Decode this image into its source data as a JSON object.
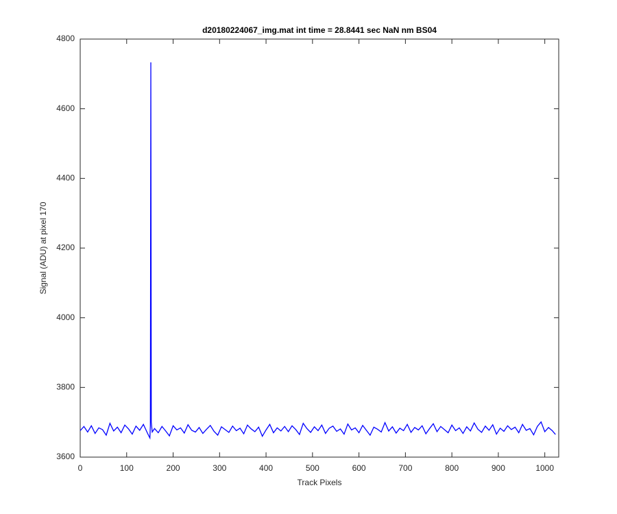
{
  "chart_data": {
    "type": "line",
    "title": "d20180224067_img.mat int time = 28.8441 sec  NaN nm BS04",
    "x_label": "Track Pixels",
    "y_label": "Signal (ADU) at pixel 170",
    "xlim": [
      0,
      1030
    ],
    "ylim": [
      3600,
      4800
    ],
    "xticks": [
      0,
      100,
      200,
      300,
      400,
      500,
      600,
      700,
      800,
      900,
      1000
    ],
    "yticks": [
      3600,
      3800,
      4000,
      4200,
      4400,
      4600,
      4800
    ],
    "series": [
      {
        "color": "#0000ff",
        "x": [
          0,
          8,
          16,
          24,
          32,
          40,
          48,
          56,
          64,
          72,
          80,
          88,
          96,
          104,
          112,
          120,
          128,
          136,
          144,
          148,
          150,
          151,
          152,
          153,
          155,
          160,
          168,
          176,
          184,
          192,
          200,
          208,
          216,
          224,
          232,
          240,
          248,
          256,
          264,
          272,
          280,
          288,
          296,
          304,
          312,
          320,
          328,
          336,
          344,
          352,
          360,
          368,
          376,
          384,
          392,
          400,
          408,
          416,
          424,
          432,
          440,
          448,
          456,
          464,
          472,
          480,
          488,
          496,
          504,
          512,
          520,
          528,
          536,
          544,
          552,
          560,
          568,
          576,
          584,
          592,
          600,
          608,
          616,
          624,
          632,
          640,
          648,
          656,
          664,
          672,
          680,
          688,
          696,
          704,
          712,
          720,
          728,
          736,
          744,
          752,
          760,
          768,
          776,
          784,
          792,
          800,
          808,
          816,
          824,
          832,
          840,
          848,
          856,
          864,
          872,
          880,
          888,
          896,
          904,
          912,
          920,
          928,
          936,
          944,
          952,
          960,
          968,
          976,
          984,
          992,
          1000,
          1008,
          1016,
          1023
        ],
        "values": [
          3676,
          3688,
          3672,
          3690,
          3668,
          3684,
          3679,
          3663,
          3697,
          3675,
          3686,
          3670,
          3692,
          3681,
          3666,
          3689,
          3677,
          3694,
          3671,
          3660,
          3655,
          3690,
          4733,
          3700,
          3672,
          3682,
          3670,
          3688,
          3675,
          3661,
          3690,
          3678,
          3684,
          3669,
          3693,
          3677,
          3672,
          3685,
          3668,
          3680,
          3691,
          3674,
          3663,
          3687,
          3679,
          3671,
          3689,
          3676,
          3683,
          3667,
          3692,
          3681,
          3673,
          3686,
          3660,
          3678,
          3694,
          3670,
          3684,
          3675,
          3688,
          3673,
          3690,
          3679,
          3665,
          3697,
          3682,
          3671,
          3687,
          3676,
          3692,
          3668,
          3683,
          3689,
          3674,
          3681,
          3666,
          3695,
          3678,
          3684,
          3670,
          3691,
          3677,
          3663,
          3686,
          3680,
          3672,
          3699,
          3675,
          3687,
          3669,
          3683,
          3676,
          3694,
          3671,
          3685,
          3678,
          3690,
          3667,
          3682,
          3696,
          3673,
          3688,
          3679,
          3670,
          3692,
          3676,
          3684,
          3668,
          3687,
          3675,
          3698,
          3680,
          3671,
          3689,
          3677,
          3693,
          3666,
          3683,
          3674,
          3690,
          3679,
          3686,
          3670,
          3694,
          3677,
          3682,
          3664,
          3688,
          3701,
          3673,
          3685,
          3676,
          3665
        ]
      }
    ]
  }
}
